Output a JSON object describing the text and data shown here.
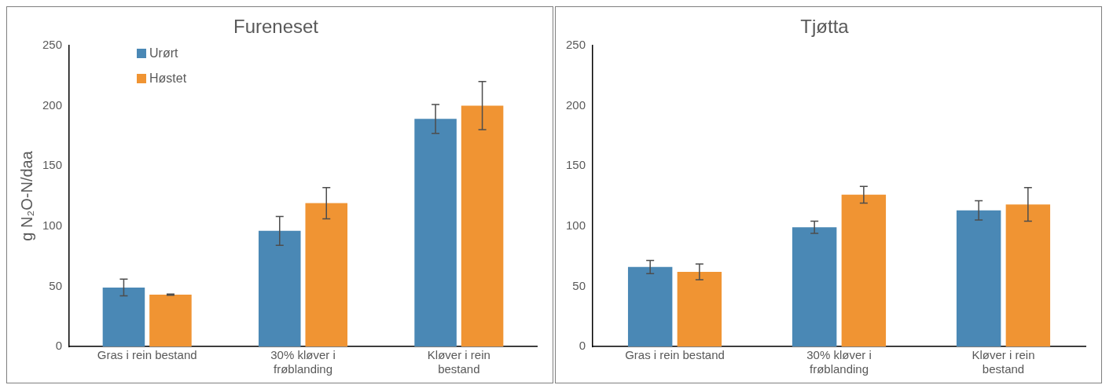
{
  "chart_data": [
    {
      "type": "bar",
      "title": "Fureneset",
      "ylabel": "g N₂O-N/daa",
      "categories": [
        "Gras i rein bestand",
        "30% kløver i frøblanding",
        "Kløver i rein bestand"
      ],
      "series": [
        {
          "name": "Urørt",
          "color": "#4a88b5",
          "values": [
            49,
            96,
            189
          ],
          "errors": [
            7,
            12,
            12
          ]
        },
        {
          "name": "Høstet",
          "color": "#f09433",
          "values": [
            43,
            119,
            200
          ],
          "errors": [
            0.5,
            13,
            20
          ]
        }
      ],
      "ylim": [
        0,
        250
      ],
      "yticks": [
        0,
        50,
        100,
        150,
        200,
        250
      ],
      "grid": false,
      "legend": "top left"
    },
    {
      "type": "bar",
      "title": "Tjøtta",
      "categories": [
        "Gras i rein bestand",
        "30% kløver i frøblanding",
        "Kløver i rein bestand"
      ],
      "series": [
        {
          "color": "#4a88b5",
          "values": [
            66,
            99,
            113
          ],
          "errors": [
            5.5,
            5,
            8
          ]
        },
        {
          "color": "#f09433",
          "values": [
            62,
            126,
            118
          ],
          "errors": [
            6.5,
            7,
            14
          ]
        }
      ],
      "ylim": [
        0,
        250
      ],
      "yticks": [
        0,
        50,
        100,
        150,
        200,
        250
      ],
      "grid": false,
      "legend": false
    }
  ]
}
